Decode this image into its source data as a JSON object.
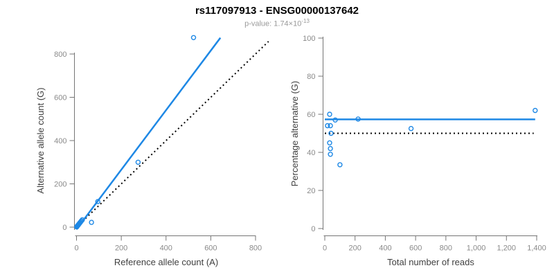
{
  "header": {
    "title": "rs117097913 - ENSG00000137642",
    "pvalue_base": "p-value: 1.74×10",
    "pvalue_exponent": "-13"
  },
  "colors": {
    "accent_blue": "#1E88E5",
    "dotted_black": "#000000",
    "axis_line_gray": "#757575",
    "tick_label_gray": "#8A8A8A",
    "axis_title_gray": "#404040",
    "subtitle_gray": "#9A9A9A",
    "title_black": "#000000",
    "background": "#FFFFFF"
  },
  "chart_data": [
    {
      "type": "scatter",
      "name": "allele-counts-scatter",
      "title": "",
      "xlabel": "Reference allele count (A)",
      "ylabel": "Alternative allele count (G)",
      "xlim": [
        0,
        800
      ],
      "ylim": [
        0,
        800
      ],
      "xticks": [
        0,
        200,
        400,
        600,
        800
      ],
      "xtick_labels": [
        "0",
        "200",
        "400",
        "600",
        "800"
      ],
      "yticks": [
        0,
        200,
        400,
        600,
        800
      ],
      "ytick_labels": [
        "0",
        "200",
        "400",
        "600",
        "800"
      ],
      "grid": false,
      "legend": false,
      "points": [
        [
          1,
          1
        ],
        [
          2,
          3
        ],
        [
          3,
          4
        ],
        [
          4,
          6
        ],
        [
          5,
          7
        ],
        [
          7,
          9
        ],
        [
          8,
          11
        ],
        [
          10,
          13
        ],
        [
          12,
          16
        ],
        [
          14,
          19
        ],
        [
          16,
          21
        ],
        [
          19,
          25
        ],
        [
          22,
          29
        ],
        [
          26,
          34
        ],
        [
          67,
          22
        ],
        [
          95,
          118
        ],
        [
          275,
          300
        ],
        [
          523,
          876
        ]
      ],
      "lines": [
        {
          "name": "fit-line",
          "style": "solid",
          "color_key": "accent_blue",
          "x": [
            0,
            643
          ],
          "y": [
            -10,
            875
          ]
        },
        {
          "name": "identity-line",
          "style": "dotted",
          "color_key": "dotted_black",
          "x": [
            0,
            858
          ],
          "y": [
            0,
            858
          ]
        }
      ]
    },
    {
      "type": "scatter",
      "name": "percentage-vs-reads-scatter",
      "title": "",
      "xlabel": "Total number of reads",
      "ylabel": "Percentage alternative (G)",
      "xlim": [
        0,
        1400
      ],
      "ylim": [
        0,
        100
      ],
      "xticks": [
        0,
        200,
        400,
        600,
        800,
        1000,
        1200,
        1400
      ],
      "xtick_labels": [
        "0",
        "200",
        "400",
        "600",
        "800",
        "1,000",
        "1,200",
        "1,400"
      ],
      "yticks": [
        0,
        20,
        40,
        60,
        80,
        100
      ],
      "ytick_labels": [
        "0",
        "20",
        "40",
        "60",
        "80",
        "100"
      ],
      "grid": false,
      "legend": false,
      "points": [
        [
          32,
          60
        ],
        [
          69,
          57
        ],
        [
          18,
          54
        ],
        [
          37,
          54
        ],
        [
          41,
          50
        ],
        [
          32,
          45
        ],
        [
          37,
          42
        ],
        [
          37,
          39
        ],
        [
          100,
          33.5
        ],
        [
          220,
          57.5
        ],
        [
          570,
          52.5
        ],
        [
          1390,
          62
        ]
      ],
      "lines": [
        {
          "name": "fit-line",
          "style": "solid",
          "color_key": "accent_blue",
          "x": [
            0,
            1390
          ],
          "y": [
            57.3,
            57.3
          ]
        },
        {
          "name": "fifty-percent-line",
          "style": "dotted",
          "color_key": "dotted_black",
          "x": [
            0,
            1380
          ],
          "y": [
            50,
            50
          ]
        }
      ]
    }
  ]
}
